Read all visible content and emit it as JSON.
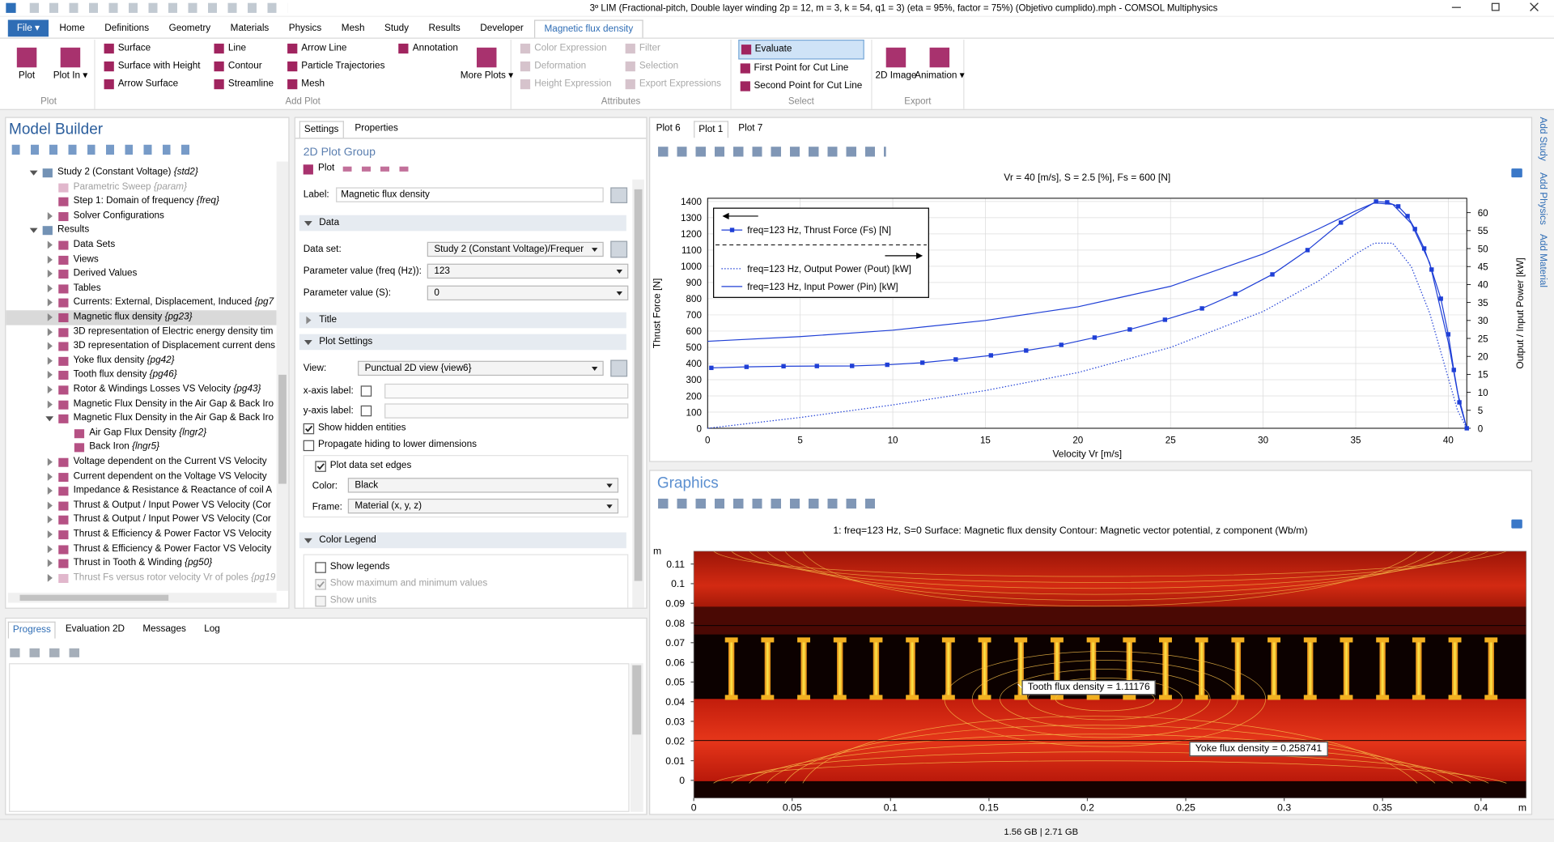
{
  "window_title": "3º LIM (Fractional-pitch, Double layer winding 2p = 12, m = 3, k = 54, q1 = 3) (eta = 95%, factor = 75%) (Objetivo cumplido).mph - COMSOL Multiphysics",
  "ribbon": {
    "tabs": [
      "File ▾",
      "Home",
      "Definitions",
      "Geometry",
      "Materials",
      "Physics",
      "Mesh",
      "Study",
      "Results",
      "Developer",
      "Magnetic flux density"
    ],
    "active_tab": 10,
    "groups": [
      {
        "label": "Plot",
        "enabled": true,
        "controls": [
          {
            "kind": "large",
            "text": "Plot"
          },
          {
            "kind": "large",
            "text": "Plot In ▾"
          }
        ]
      },
      {
        "label": "Add Plot",
        "enabled": true,
        "controls": [
          {
            "kind": "column",
            "texts": [
              "Surface",
              "Surface with Height",
              "Arrow Surface"
            ]
          },
          {
            "kind": "column",
            "texts": [
              "Line",
              "Contour",
              "Streamline"
            ]
          },
          {
            "kind": "column",
            "texts": [
              "Arrow Line",
              "Particle Trajectories",
              "Mesh"
            ]
          },
          {
            "kind": "column",
            "texts": [
              "Annotation"
            ]
          },
          {
            "kind": "large",
            "text": "More Plots ▾"
          }
        ]
      },
      {
        "label": "Attributes",
        "enabled": false,
        "controls": [
          {
            "kind": "column",
            "texts": [
              "Color Expression",
              "Deformation",
              "Height Expression"
            ]
          },
          {
            "kind": "column",
            "texts": [
              "Filter",
              "Selection",
              "Export Expressions"
            ]
          }
        ]
      },
      {
        "label": "Select",
        "enabled": true,
        "controls": [
          {
            "kind": "column",
            "texts": [
              "Evaluate",
              "First Point for Cut Line",
              "Second Point for Cut Line"
            ],
            "active_index": 0
          }
        ]
      },
      {
        "label": "Export",
        "enabled": true,
        "controls": [
          {
            "kind": "large",
            "text": "2D Image"
          },
          {
            "kind": "large",
            "text": "Animation ▾"
          }
        ]
      }
    ]
  },
  "model_builder": {
    "title": "Model Builder",
    "tree": [
      {
        "text": "Study 2 (Constant Voltage)",
        "tag": "{std2}",
        "children": [
          {
            "text": "Parametric Sweep",
            "tag": "{param}",
            "disabled": true
          },
          {
            "text": "Step 1: Domain of frequency",
            "tag": "{freq}"
          },
          {
            "text": "Solver Configurations",
            "collapsed": true
          }
        ]
      },
      {
        "text": "Results",
        "children": [
          {
            "text": "Data Sets",
            "collapsed": true
          },
          {
            "text": "Views",
            "collapsed": true
          },
          {
            "text": "Derived Values",
            "collapsed": true
          },
          {
            "text": "Tables",
            "collapsed": true
          },
          {
            "text": "Currents: External, Displacement, Induced",
            "tag": "{pg7",
            "collapsed": true
          },
          {
            "text": "Magnetic flux density",
            "tag": "{pg23}",
            "collapsed": true,
            "selected": true
          },
          {
            "text": "3D representation of Electric energy density tim",
            "collapsed": true
          },
          {
            "text": "3D representation of Displacement current dens",
            "collapsed": true
          },
          {
            "text": "Yoke flux density",
            "tag": "{pg42}",
            "collapsed": true
          },
          {
            "text": "Tooth flux density",
            "tag": "{pg46}",
            "collapsed": true
          },
          {
            "text": "Rotor  & Windings Losses VS Velocity",
            "tag": "{pg43}",
            "collapsed": true
          },
          {
            "text": "Magnetic Flux Density in the Air Gap & Back Iro",
            "collapsed": true
          },
          {
            "text": "Magnetic Flux Density in the Air Gap & Back Iro",
            "children": [
              {
                "text": "Air Gap Flux Density",
                "tag": "{lngr2}"
              },
              {
                "text": "Back Iron",
                "tag": "{lngr5}"
              }
            ]
          },
          {
            "text": "Voltage dependent on the Current VS Velocity",
            "collapsed": true
          },
          {
            "text": "Current dependent on the Voltage VS Velocity",
            "collapsed": true
          },
          {
            "text": "Impedance & Resistance & Reactance of coil A",
            "collapsed": true
          },
          {
            "text": "Thrust & Output / Input Power VS Velocity (Cor",
            "collapsed": true
          },
          {
            "text": "Thrust & Output / Input Power VS Velocity (Cor",
            "collapsed": true
          },
          {
            "text": "Thrust & Efficiency & Power Factor VS Velocity",
            "collapsed": true
          },
          {
            "text": "Thrust & Efficiency & Power Factor VS Velocity",
            "collapsed": true
          },
          {
            "text": "Thrust in Tooth & Winding",
            "tag": "{pg50}",
            "collapsed": true
          },
          {
            "text": "Thrust Fs versus rotor velocity Vr of poles",
            "tag": "{pg19",
            "collapsed": true,
            "disabled": true
          }
        ]
      }
    ]
  },
  "settings": {
    "tabs": [
      "Settings",
      "Properties"
    ],
    "active_tab": 0,
    "heading": "2D Plot Group",
    "plot_button": "Plot",
    "label": {
      "caption": "Label:",
      "value": "Magnetic flux density"
    },
    "data": {
      "title": "Data",
      "fields": [
        {
          "label": "Data set:",
          "value": "Study 2 (Constant Voltage)/Frequer"
        },
        {
          "label": "Parameter value (freq (Hz)):",
          "value": "123"
        },
        {
          "label": "Parameter value (S):",
          "value": "0"
        }
      ]
    },
    "title_section": "Title",
    "plot_settings": {
      "title": "Plot Settings",
      "view": {
        "label": "View:",
        "value": "Punctual 2D view {view6}"
      },
      "x_axis_label": {
        "label": "x-axis label:",
        "checked": false
      },
      "y_axis_label": {
        "label": "y-axis label:",
        "checked": false
      },
      "show_hidden": {
        "label": "Show hidden entities",
        "checked": true
      },
      "propagate": {
        "label": "Propagate hiding to lower dimensions",
        "checked": false
      },
      "edges": {
        "label": "Plot data set edges",
        "checked": true
      },
      "color": {
        "label": "Color:",
        "value": "Black"
      },
      "frame": {
        "label": "Frame:",
        "value": "Material  (x, y, z)"
      }
    },
    "color_legend": {
      "title": "Color Legend",
      "show_legends": {
        "label": "Show legends",
        "checked": false
      },
      "show_max_min": {
        "label": "Show maximum and minimum values",
        "checked": true,
        "enabled": false
      },
      "show_units": {
        "label": "Show units",
        "checked": false,
        "enabled": false
      }
    }
  },
  "plot_window": {
    "tabs": [
      "Plot 6",
      "Plot 1",
      "Plot 7"
    ],
    "active_tab": 1,
    "chart": {
      "type": "line",
      "title": "Vr = 40 [m/s], S = 2.5 [%], Fs = 600 [N]",
      "xlabel": "Velocity Vr [m/s]",
      "ylabel": "Thrust Force [N]",
      "y2label": "Output / Input Power [kW]",
      "xlim": [
        0,
        41
      ],
      "ylim": [
        0,
        1420
      ],
      "y2lim": [
        0,
        64
      ],
      "grid": true,
      "legend": "upper left",
      "xticks": [
        0,
        5,
        10,
        15,
        20,
        25,
        30,
        35,
        40
      ],
      "yticks": [
        0,
        100,
        200,
        300,
        400,
        500,
        600,
        700,
        800,
        900,
        1000,
        1100,
        1200,
        1300,
        1400
      ],
      "y2ticks": [
        0,
        5,
        10,
        15,
        20,
        25,
        30,
        35,
        40,
        45,
        50,
        55,
        60
      ],
      "series": [
        {
          "name": "freq=123 Hz, Thrust Force (Fs) [N]",
          "color": "#1f3fd6",
          "marker": "square",
          "line": "solid",
          "x": [
            0.2,
            2.1,
            4.1,
            5.9,
            7.8,
            9.7,
            11.6,
            13.4,
            15.3,
            17.2,
            19.1,
            20.9,
            22.8,
            24.7,
            26.7,
            28.5,
            30.5,
            32.4,
            34.2,
            36.1,
            36.7,
            37.3,
            37.8,
            38.2,
            38.7,
            39.1,
            39.6,
            40.0,
            40.3,
            40.6,
            41.0
          ],
          "values": [
            373,
            379,
            383,
            384,
            385,
            392,
            405,
            425,
            450,
            480,
            515,
            560,
            610,
            670,
            740,
            830,
            950,
            1100,
            1270,
            1400,
            1395,
            1370,
            1310,
            1230,
            1110,
            980,
            800,
            580,
            360,
            160,
            0
          ]
        },
        {
          "name": "freq=123 Hz, Output Power (Pout) [kW]",
          "color": "#1f3fd6",
          "line": "dotted",
          "axis": "y2",
          "x": [
            0,
            5,
            10,
            15,
            20,
            25,
            30,
            33,
            35,
            36,
            37,
            38,
            39,
            40,
            40.5,
            41
          ],
          "values": [
            0,
            3,
            6.5,
            10.5,
            15.5,
            22.5,
            32.5,
            41,
            48.5,
            51.5,
            51.5,
            45,
            32,
            14,
            5,
            0
          ]
        },
        {
          "name": "freq=123 Hz, Input Power (Pin) [kW]",
          "color": "#1f3fd6",
          "line": "solid",
          "axis": "y2",
          "x": [
            0,
            5,
            10,
            15,
            20,
            25,
            30,
            33,
            35,
            36,
            37,
            38,
            39,
            40,
            40.5,
            41
          ],
          "values": [
            24.2,
            25.5,
            27.3,
            30,
            33.8,
            39.5,
            48.5,
            55.5,
            60.5,
            62.7,
            62.3,
            57,
            46,
            24,
            10,
            0
          ]
        }
      ]
    }
  },
  "graphics": {
    "title": "Graphics",
    "plot_title": "1: freq=123 Hz, S=0  Surface: Magnetic flux density  Contour: Magnetic vector potential, z component (Wb/m)",
    "xlim": [
      0,
      0.423
    ],
    "ylim": [
      -0.009,
      0.1165
    ],
    "xunit": "m",
    "yunit": "m",
    "xticks": [
      0,
      0.05,
      0.1,
      0.15,
      0.2,
      0.25,
      0.3,
      0.35,
      0.4
    ],
    "yticks": [
      0,
      0.01,
      0.02,
      0.03,
      0.04,
      0.05,
      0.06,
      0.07,
      0.08,
      0.09,
      0.1,
      0.11
    ],
    "annotations": [
      "Tooth flux density = 1.11176",
      "Yoke flux density = 0.258741"
    ]
  },
  "messages": {
    "tabs": [
      "Progress",
      "Evaluation 2D",
      "Messages",
      "Log"
    ],
    "active_tab": 0
  },
  "side_tabs": [
    "Add Study",
    "Add Physics",
    "Add Material"
  ],
  "status": "1.56 GB | 2.71 GB"
}
